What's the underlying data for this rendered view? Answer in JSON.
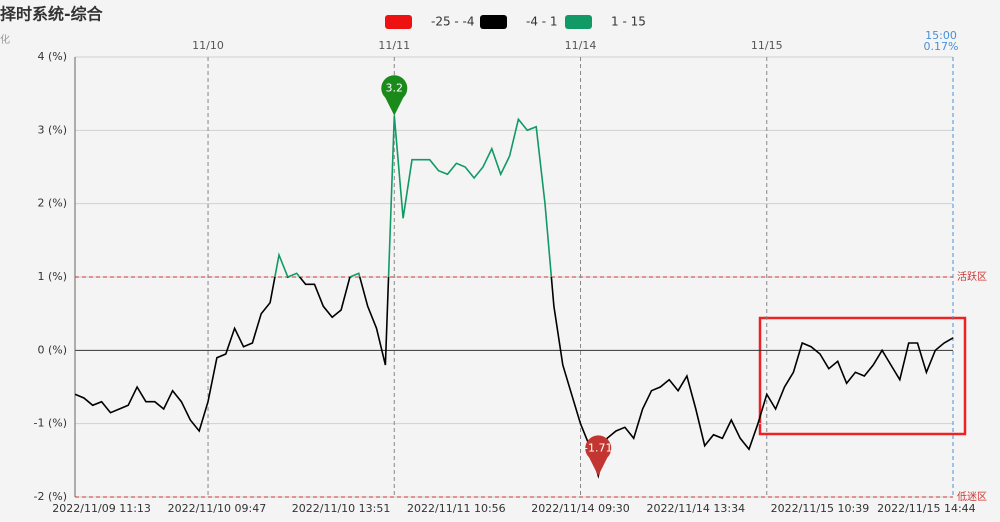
{
  "chart_data": {
    "type": "line",
    "title": "择时系统-综合",
    "y_axis_name": "化",
    "categories": [
      null,
      null,
      null,
      "2022/11/09 11:13",
      null,
      null,
      null,
      null,
      null,
      null,
      null,
      null,
      null,
      null,
      null,
      null,
      "2022/11/10 09:47",
      null,
      null,
      null,
      null,
      null,
      null,
      null,
      null,
      null,
      null,
      null,
      null,
      null,
      "2022/11/10 13:51",
      null,
      null,
      null,
      null,
      null,
      null,
      null,
      null,
      null,
      null,
      null,
      null,
      "2022/11/11 10:56",
      null,
      null,
      null,
      null,
      null,
      null,
      null,
      null,
      null,
      null,
      null,
      null,
      null,
      "2022/11/14 09:30",
      null,
      null,
      null,
      null,
      null,
      null,
      null,
      null,
      null,
      null,
      null,
      null,
      "2022/11/14 13:34",
      null,
      null,
      null,
      null,
      null,
      null,
      null,
      null,
      null,
      null,
      null,
      null,
      null,
      "2022/11/15 10:39",
      null,
      null,
      null,
      null,
      null,
      null,
      null,
      null,
      null,
      null,
      null,
      "2022/11/15 14:44",
      null,
      null,
      null
    ],
    "x2_categories": [
      null,
      null,
      null,
      null,
      null,
      null,
      null,
      null,
      null,
      null,
      null,
      null,
      null,
      null,
      null,
      "11/10",
      null,
      null,
      null,
      null,
      null,
      null,
      null,
      null,
      null,
      null,
      null,
      null,
      null,
      null,
      null,
      null,
      null,
      null,
      null,
      null,
      "11/11",
      null,
      null,
      null,
      null,
      null,
      null,
      null,
      null,
      null,
      null,
      null,
      null,
      null,
      null,
      null,
      null,
      null,
      null,
      null,
      null,
      "11/14",
      null,
      null,
      null,
      null,
      null,
      null,
      null,
      null,
      null,
      null,
      null,
      null,
      null,
      null,
      null,
      null,
      null,
      null,
      null,
      null,
      "11/15",
      null,
      null,
      null,
      null,
      null,
      null,
      null,
      null,
      null,
      null,
      null,
      null,
      null,
      null,
      null,
      null,
      null,
      null,
      null,
      null,
      "15:00"
    ],
    "values": [
      -0.6,
      -0.65,
      -0.75,
      -0.7,
      -0.85,
      -0.8,
      -0.75,
      -0.5,
      -0.7,
      -0.7,
      -0.8,
      -0.55,
      -0.7,
      -0.95,
      -1.1,
      -0.7,
      -0.1,
      -0.05,
      0.3,
      0.05,
      0.1,
      0.5,
      0.65,
      1.3,
      1.0,
      1.05,
      0.9,
      0.9,
      0.6,
      0.45,
      0.55,
      1.0,
      1.05,
      0.6,
      0.3,
      -0.2,
      3.2,
      1.8,
      2.6,
      2.6,
      2.6,
      2.45,
      2.4,
      2.55,
      2.5,
      2.35,
      2.5,
      2.75,
      2.4,
      2.65,
      3.15,
      3.0,
      3.05,
      2.0,
      0.6,
      -0.2,
      -0.6,
      -1.0,
      -1.3,
      -1.71,
      -1.2,
      -1.1,
      -1.05,
      -1.2,
      -0.8,
      -0.55,
      -0.5,
      -0.4,
      -0.55,
      -0.35,
      -0.8,
      -1.3,
      -1.15,
      -1.2,
      -0.95,
      -1.2,
      -1.35,
      -1.0,
      -0.6,
      -0.8,
      -0.5,
      -0.3,
      0.1,
      0.05,
      -0.05,
      -0.25,
      -0.15,
      -0.45,
      -0.3,
      -0.35,
      -0.2,
      0.0,
      -0.2,
      -0.4,
      0.1,
      0.1,
      -0.3,
      0.0,
      0.1,
      0.17
    ],
    "value_labels": [
      null,
      null,
      null,
      null,
      null,
      null,
      null,
      null,
      null,
      null,
      null,
      null,
      null,
      null,
      null,
      null,
      null,
      null,
      null,
      null,
      null,
      null,
      null,
      null,
      null,
      null,
      null,
      null,
      null,
      null,
      null,
      null,
      null,
      null,
      null,
      null,
      null,
      null,
      null,
      null,
      null,
      null,
      null,
      null,
      null,
      null,
      null,
      null,
      null,
      null,
      null,
      null,
      null,
      null,
      null,
      null,
      null,
      null,
      null,
      null,
      null,
      null,
      null,
      null,
      null,
      null,
      null,
      null,
      null,
      null,
      null,
      null,
      null,
      null,
      null,
      null,
      null,
      null,
      null,
      null,
      null,
      null,
      null,
      null,
      null,
      null,
      null,
      null,
      null,
      null,
      null,
      null,
      null,
      null,
      null,
      null,
      null,
      null,
      null,
      "0.17%"
    ],
    "pieces": [
      {
        "min": -25,
        "max": -4,
        "label": "-25 - -4",
        "color": "#ee1111"
      },
      {
        "min": -4,
        "max": 1,
        "label": "-4 - 1",
        "color": "#000000"
      },
      {
        "min": 1,
        "max": 15,
        "label": "1 - 15",
        "color": "#119966"
      }
    ],
    "mark_points": [
      {
        "type": "max",
        "color": "#1a8a1a"
      },
      {
        "type": "min",
        "color": "#c23531"
      }
    ],
    "ref_lines": [
      {
        "value": 1,
        "label": "活跃区"
      },
      {
        "value": -2,
        "label": "低迷区"
      }
    ],
    "ylim": [
      -2,
      4
    ],
    "yticks": [
      {
        "value": -2,
        "label": "-2 (%)"
      },
      {
        "value": -1,
        "label": "-1 (%)"
      },
      {
        "value": 0,
        "label": "0 (%)"
      },
      {
        "value": 1,
        "label": "1 (%)"
      },
      {
        "value": 2,
        "label": "2 (%)"
      },
      {
        "value": 3,
        "label": "3 (%)"
      },
      {
        "value": 4,
        "label": "4 (%)"
      }
    ],
    "grid": true
  }
}
